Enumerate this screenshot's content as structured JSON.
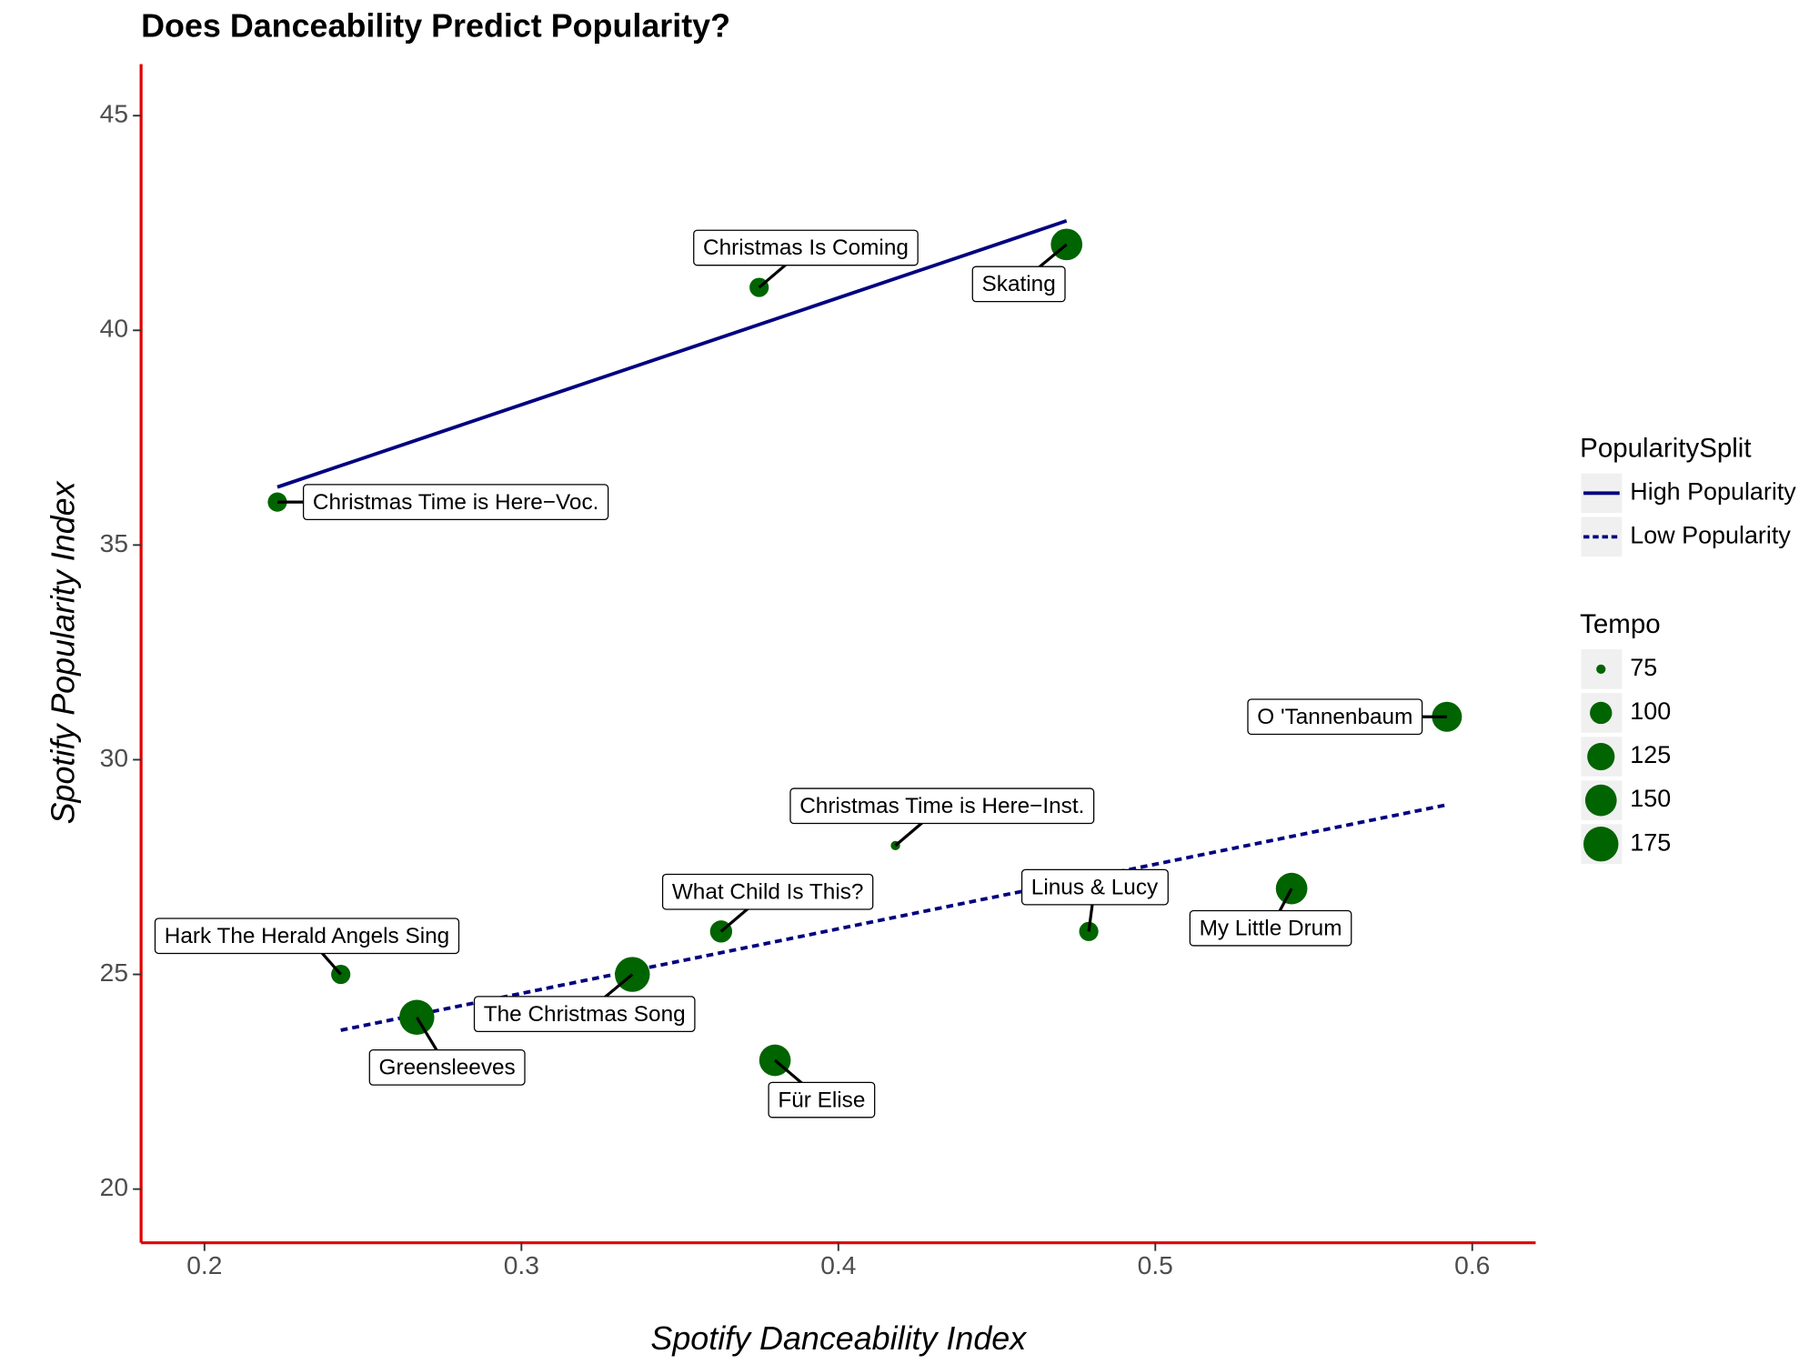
{
  "chart_data": {
    "type": "scatter",
    "title": "Does Danceability Predict Popularity?",
    "x_label": "Spotify Danceability Index",
    "y_label": "Spotify Popularity Index",
    "xlim": [
      0.18,
      0.62
    ],
    "ylim": [
      18.75,
      46.2
    ],
    "xticks": [
      0.2,
      0.3,
      0.4,
      0.5,
      0.6
    ],
    "yticks": [
      20,
      25,
      30,
      35,
      40,
      45
    ],
    "color": "#006400",
    "axis_color": "#e00000",
    "points": {
      "labels": [
        "Christmas Is Coming",
        "Skating",
        "Christmas Time is Here−Voc.",
        "O 'Tannenbaum",
        "Christmas Time is Here−Inst.",
        "What Child Is This?",
        "Linus & Lucy",
        "My Little Drum",
        "Hark The Herald Angels Sing",
        "The Christmas Song",
        "Greensleeves",
        "Für Elise"
      ],
      "x": [
        0.375,
        0.472,
        0.223,
        0.592,
        0.418,
        0.363,
        0.479,
        0.543,
        0.243,
        0.335,
        0.267,
        0.38
      ],
      "y": [
        41,
        42,
        36,
        31,
        28,
        26,
        26,
        27,
        25,
        25,
        24,
        23
      ],
      "tempo": [
        90,
        150,
        90,
        140,
        75,
        100,
        90,
        150,
        90,
        175,
        175,
        150
      ]
    },
    "lines": [
      {
        "name": "High Popularity",
        "style": "solid",
        "color": "#000080",
        "x": [
          0.223,
          0.472
        ],
        "y": [
          36.35,
          42.55
        ]
      },
      {
        "name": "Low Popularity",
        "style": "dashed",
        "color": "#000080",
        "x": [
          0.243,
          0.592
        ],
        "y": [
          23.7,
          28.95
        ]
      }
    ],
    "line_legend_title": "PopularitySplit",
    "size_legend_title": "Tempo",
    "size_legend": [
      75,
      100,
      125,
      150,
      175
    ]
  }
}
